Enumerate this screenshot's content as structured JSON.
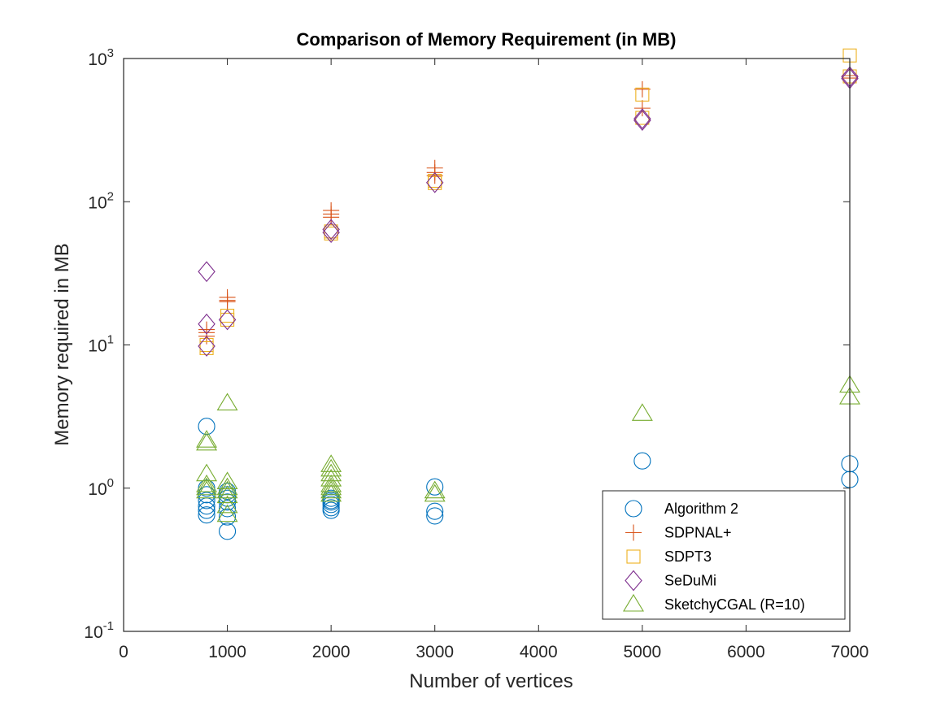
{
  "chart_data": {
    "type": "scatter",
    "title": "Comparison of Memory Requirement (in MB)",
    "xlabel": "Number of vertices",
    "ylabel": "Memory required in MB",
    "xlim": [
      0,
      7000
    ],
    "ylim": [
      0.1,
      1000
    ],
    "yscale": "log",
    "grid": false,
    "legend_position": "bottom-right",
    "xticks": [
      {
        "value": 0,
        "label": "0"
      },
      {
        "value": 1000,
        "label": "1000"
      },
      {
        "value": 2000,
        "label": "2000"
      },
      {
        "value": 3000,
        "label": "3000"
      },
      {
        "value": 4000,
        "label": "4000"
      },
      {
        "value": 5000,
        "label": "5000"
      },
      {
        "value": 6000,
        "label": "6000"
      },
      {
        "value": 7000,
        "label": "7000"
      }
    ],
    "yticks": [
      {
        "value": 0.1,
        "base": "10",
        "exp": "-1"
      },
      {
        "value": 1,
        "base": "10",
        "exp": "0"
      },
      {
        "value": 10,
        "base": "10",
        "exp": "1"
      },
      {
        "value": 100,
        "base": "10",
        "exp": "2"
      },
      {
        "value": 1000,
        "base": "10",
        "exp": "3"
      }
    ],
    "series": [
      {
        "name": "Algorithm 2",
        "marker": "circle",
        "color": "#0072BD",
        "points": [
          [
            800,
            2.7
          ],
          [
            800,
            1.0
          ],
          [
            800,
            0.9
          ],
          [
            800,
            0.82
          ],
          [
            800,
            0.75
          ],
          [
            800,
            0.7
          ],
          [
            800,
            0.65
          ],
          [
            1000,
            0.95
          ],
          [
            1000,
            0.9
          ],
          [
            1000,
            0.85
          ],
          [
            1000,
            0.8
          ],
          [
            1000,
            0.72
          ],
          [
            1000,
            0.63
          ],
          [
            1000,
            0.5
          ],
          [
            2000,
            0.85
          ],
          [
            2000,
            0.82
          ],
          [
            2000,
            0.8
          ],
          [
            2000,
            0.77
          ],
          [
            2000,
            0.73
          ],
          [
            2000,
            0.7
          ],
          [
            3000,
            1.02
          ],
          [
            3000,
            0.69
          ],
          [
            3000,
            0.64
          ],
          [
            5000,
            1.55
          ],
          [
            7000,
            1.48
          ],
          [
            7000,
            1.15
          ]
        ]
      },
      {
        "name": "SDPNAL+",
        "marker": "plus",
        "color": "#D95319",
        "points": [
          [
            800,
            12.8
          ],
          [
            800,
            12.2
          ],
          [
            800,
            11.5
          ],
          [
            1000,
            21.5
          ],
          [
            1000,
            20.5
          ],
          [
            1000,
            20.0
          ],
          [
            2000,
            87
          ],
          [
            2000,
            82
          ],
          [
            2000,
            78
          ],
          [
            3000,
            172
          ],
          [
            3000,
            160
          ],
          [
            3000,
            152
          ],
          [
            5000,
            610
          ],
          [
            5000,
            450
          ],
          [
            7000,
            760
          ],
          [
            7000,
            730
          ]
        ]
      },
      {
        "name": "SDPT3",
        "marker": "square",
        "color": "#EDB120",
        "points": [
          [
            800,
            10.0
          ],
          [
            800,
            9.5
          ],
          [
            1000,
            16.0
          ],
          [
            1000,
            15.0
          ],
          [
            2000,
            62
          ],
          [
            2000,
            60
          ],
          [
            3000,
            140
          ],
          [
            3000,
            135
          ],
          [
            5000,
            560
          ],
          [
            5000,
            385
          ],
          [
            7000,
            1050
          ],
          [
            7000,
            750
          ]
        ]
      },
      {
        "name": "SeDuMi",
        "marker": "diamond",
        "color": "#7E2F8E",
        "points": [
          [
            800,
            32.5
          ],
          [
            800,
            14.0
          ],
          [
            800,
            9.8
          ],
          [
            1000,
            15.0
          ],
          [
            2000,
            64
          ],
          [
            2000,
            61
          ],
          [
            3000,
            136
          ],
          [
            5000,
            380
          ],
          [
            5000,
            370
          ],
          [
            7000,
            745
          ],
          [
            7000,
            725
          ]
        ]
      },
      {
        "name": "SketchyCGAL (R=10)",
        "marker": "triangle",
        "color": "#77AC30",
        "points": [
          [
            800,
            2.15
          ],
          [
            800,
            2.05
          ],
          [
            800,
            1.25
          ],
          [
            800,
            1.05
          ],
          [
            800,
            1.0
          ],
          [
            800,
            0.95
          ],
          [
            1000,
            3.9
          ],
          [
            1000,
            1.1
          ],
          [
            1000,
            1.0
          ],
          [
            1000,
            0.95
          ],
          [
            1000,
            0.88
          ],
          [
            1000,
            0.75
          ],
          [
            1000,
            0.65
          ],
          [
            2000,
            1.45
          ],
          [
            2000,
            1.35
          ],
          [
            2000,
            1.25
          ],
          [
            2000,
            1.15
          ],
          [
            2000,
            1.05
          ],
          [
            2000,
            1.0
          ],
          [
            2000,
            0.95
          ],
          [
            2000,
            0.9
          ],
          [
            3000,
            0.95
          ],
          [
            3000,
            0.9
          ],
          [
            5000,
            3.3
          ],
          [
            7000,
            5.2
          ],
          [
            7000,
            4.3
          ]
        ]
      }
    ]
  }
}
